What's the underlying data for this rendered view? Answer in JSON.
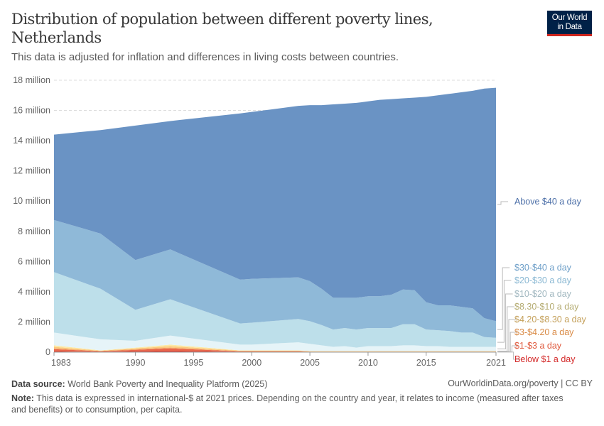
{
  "header": {
    "title": "Distribution of population between different poverty lines, Netherlands",
    "subtitle": "This data is adjusted for inflation and differences in living costs between countries.",
    "logo": "Our World in Data"
  },
  "footer": {
    "source_label": "Data source:",
    "source": "World Bank Poverty and Inequality Platform (2025)",
    "url": "OurWorldinData.org/poverty | CC BY",
    "note_label": "Note:",
    "note": "This data is expressed in international-$ at 2021 prices. Depending on the country and year, it relates to income (measured after taxes and benefits) or to consumption, per capita."
  },
  "chart_data": {
    "type": "area",
    "stacked": true,
    "title": "",
    "xlabel": "",
    "ylabel": "",
    "ylim": [
      0,
      18000000
    ],
    "grid": "horizontal-dashed",
    "yticks": [
      {
        "v": 0,
        "label": "0"
      },
      {
        "v": 2000000,
        "label": "2 million"
      },
      {
        "v": 4000000,
        "label": "4 million"
      },
      {
        "v": 6000000,
        "label": "6 million"
      },
      {
        "v": 8000000,
        "label": "8 million"
      },
      {
        "v": 10000000,
        "label": "10 million"
      },
      {
        "v": 12000000,
        "label": "12 million"
      },
      {
        "v": 14000000,
        "label": "14 million"
      },
      {
        "v": 16000000,
        "label": "16 million"
      },
      {
        "v": 18000000,
        "label": "18 million"
      }
    ],
    "xticks": [
      1983,
      1990,
      1995,
      2000,
      2005,
      2010,
      2015,
      2021
    ],
    "legend": "right-labels",
    "x": [
      1983,
      1987,
      1990,
      1993,
      1999,
      2000,
      2004,
      2005,
      2006,
      2007,
      2008,
      2009,
      2010,
      2011,
      2012,
      2013,
      2014,
      2015,
      2016,
      2017,
      2018,
      2019,
      2020,
      2021
    ],
    "series": [
      {
        "name": "Below $1 a day",
        "color": "#d73027",
        "label_color": "#d42a2a",
        "values_millions": [
          0.05,
          0.02,
          0.05,
          0.08,
          0.02,
          0.02,
          0.02,
          0.01,
          0.01,
          0.01,
          0.01,
          0.01,
          0.01,
          0.01,
          0.01,
          0.01,
          0.01,
          0.01,
          0.01,
          0.01,
          0.01,
          0.01,
          0.01,
          0.01
        ]
      },
      {
        "name": "$1-$3 a day",
        "color": "#e8664b",
        "label_color": "#e05a3e",
        "values_millions": [
          0.15,
          0.04,
          0.1,
          0.17,
          0.03,
          0.03,
          0.03,
          0.02,
          0.02,
          0.02,
          0.02,
          0.02,
          0.02,
          0.02,
          0.02,
          0.02,
          0.02,
          0.02,
          0.02,
          0.02,
          0.02,
          0.02,
          0.02,
          0.02
        ]
      },
      {
        "name": "$3-$4.20 a day",
        "color": "#f4a261",
        "label_color": "#d98a45",
        "values_millions": [
          0.05,
          0.02,
          0.05,
          0.05,
          0.02,
          0.02,
          0.02,
          0.01,
          0.01,
          0.01,
          0.01,
          0.01,
          0.01,
          0.01,
          0.01,
          0.01,
          0.01,
          0.01,
          0.01,
          0.01,
          0.01,
          0.01,
          0.01,
          0.01
        ]
      },
      {
        "name": "$4.20-$8.30 a day",
        "color": "#fbc97e",
        "label_color": "#c4a05a",
        "values_millions": [
          0.1,
          0.02,
          0.05,
          0.1,
          0.03,
          0.03,
          0.03,
          0.02,
          0.02,
          0.02,
          0.02,
          0.02,
          0.02,
          0.02,
          0.02,
          0.02,
          0.02,
          0.02,
          0.02,
          0.02,
          0.02,
          0.02,
          0.02,
          0.02
        ]
      },
      {
        "name": "$8.30-$10 a day",
        "color": "#fde9a4",
        "label_color": "#b5ac72",
        "values_millions": [
          0.1,
          0.02,
          0.05,
          0.1,
          0.02,
          0.02,
          0.02,
          0.02,
          0.02,
          0.02,
          0.02,
          0.02,
          0.02,
          0.02,
          0.02,
          0.02,
          0.02,
          0.02,
          0.02,
          0.02,
          0.02,
          0.02,
          0.02,
          0.02
        ]
      },
      {
        "name": "$10-$20 a day",
        "color": "#e6f4f8",
        "label_color": "#a2b8c0",
        "values_millions": [
          0.85,
          0.73,
          0.45,
          0.6,
          0.38,
          0.38,
          0.53,
          0.47,
          0.37,
          0.27,
          0.32,
          0.22,
          0.32,
          0.32,
          0.32,
          0.37,
          0.37,
          0.32,
          0.32,
          0.27,
          0.27,
          0.27,
          0.27,
          0.27
        ]
      },
      {
        "name": "$20-$30 a day",
        "color": "#bddfea",
        "label_color": "#8ab8d3",
        "values_millions": [
          4.0,
          3.35,
          2.05,
          2.4,
          1.4,
          1.45,
          1.55,
          1.5,
          1.35,
          1.15,
          1.2,
          1.2,
          1.2,
          1.2,
          1.2,
          1.4,
          1.4,
          1.1,
          1.05,
          1.05,
          0.95,
          0.95,
          0.65,
          0.6
        ]
      },
      {
        "name": "$30-$40 a day",
        "color": "#8fb9d8",
        "label_color": "#6fa0c9",
        "values_millions": [
          3.45,
          3.65,
          3.3,
          3.3,
          2.9,
          2.9,
          2.75,
          2.65,
          2.4,
          2.1,
          2.0,
          2.1,
          2.1,
          2.1,
          2.2,
          2.3,
          2.25,
          1.8,
          1.65,
          1.7,
          1.7,
          1.6,
          1.25,
          1.1
        ]
      },
      {
        "name": "Above $40 a day",
        "color": "#6a93c4",
        "label_color": "#4c6fa8",
        "values_millions": [
          5.65,
          6.85,
          8.9,
          8.5,
          11.0,
          11.05,
          11.35,
          11.65,
          12.15,
          12.8,
          12.85,
          12.9,
          12.9,
          13.0,
          12.95,
          12.65,
          12.75,
          13.6,
          13.9,
          14.0,
          14.2,
          14.4,
          15.2,
          15.45
        ]
      }
    ]
  }
}
